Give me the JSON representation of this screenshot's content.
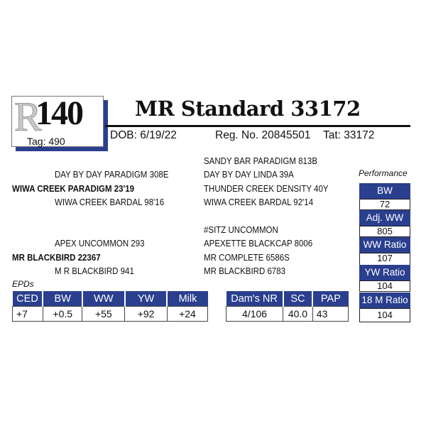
{
  "lot": {
    "logo": "R",
    "number": "140",
    "tag": "Tag: 490"
  },
  "title": "MR Standard 33172",
  "info": {
    "dob": "DOB: 6/19/22",
    "reg": "Reg. No. 20845501",
    "tat": "Tat: 33172"
  },
  "pedigree": {
    "sire": "WIWA CREEK PARADIGM 23'19",
    "sire_sire": "DAY BY DAY PARADIGM 308E",
    "sire_dam": "WIWA CREEK BARDAL 98'16",
    "sss": "SANDY BAR PARADIGM 813B",
    "ssd": "DAY BY DAY LINDA 39A",
    "sds": "THUNDER CREEK DENSITY 40Y",
    "sdd": "WIWA CREEK BARDAL 92'14",
    "dam": "MR BLACKBIRD 22367",
    "dam_sire": "APEX UNCOMMON 293",
    "dam_dam": "M R BLACKBIRD 941",
    "dss": "#SITZ UNCOMMON",
    "dsd": "APEXETTE BLACKCAP 8006",
    "dds": "MR COMPLETE 6586S",
    "ddd": "MR BLACKBIRD 6783"
  },
  "performance": {
    "label": "Performance",
    "items": [
      {
        "label": "BW",
        "value": "72"
      },
      {
        "label": "Adj. WW",
        "value": "805"
      },
      {
        "label": "WW Ratio",
        "value": "107"
      },
      {
        "label": "YW Ratio",
        "value": "104"
      },
      {
        "label": "18 M Ratio",
        "value": "104"
      }
    ]
  },
  "epds": {
    "label": "EPDs",
    "headers": [
      "CED",
      "BW",
      "WW",
      "YW",
      "Milk"
    ],
    "values": [
      "+7",
      "+0.5",
      "+55",
      "+92",
      "+24"
    ]
  },
  "dam_stats": {
    "headers": [
      "Dam's NR",
      "SC",
      "PAP"
    ],
    "values": [
      "4/106",
      "40.0",
      "43"
    ]
  },
  "colors": {
    "accent": "#2b3f8f"
  }
}
